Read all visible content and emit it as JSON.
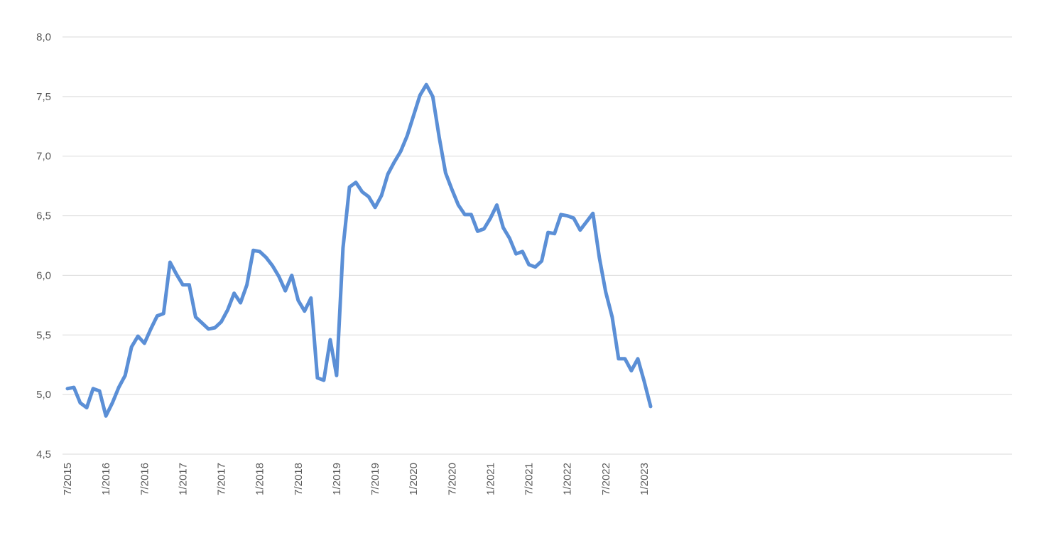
{
  "chart_data": {
    "type": "line",
    "title": "",
    "xlabel": "",
    "ylabel": "",
    "ylim": [
      4.5,
      8.0
    ],
    "grid": true,
    "yticks": [
      "4,5",
      "5,0",
      "5,5",
      "6,0",
      "6,5",
      "7,0",
      "7,5",
      "8,0"
    ],
    "xticks": [
      "7/2015",
      "1/2016",
      "7/2016",
      "1/2017",
      "7/2017",
      "1/2018",
      "7/2018",
      "1/2019",
      "7/2019",
      "1/2020",
      "7/2020",
      "1/2021",
      "7/2021",
      "1/2022",
      "7/2022",
      "1/2023"
    ],
    "series_color": "#5b8fd6",
    "x": [
      "7/2015",
      "8/2015",
      "9/2015",
      "10/2015",
      "11/2015",
      "12/2015",
      "1/2016",
      "2/2016",
      "3/2016",
      "4/2016",
      "5/2016",
      "6/2016",
      "7/2016",
      "8/2016",
      "9/2016",
      "10/2016",
      "11/2016",
      "12/2016",
      "1/2017",
      "2/2017",
      "3/2017",
      "4/2017",
      "5/2017",
      "6/2017",
      "7/2017",
      "8/2017",
      "9/2017",
      "10/2017",
      "11/2017",
      "12/2017",
      "1/2018",
      "2/2018",
      "3/2018",
      "4/2018",
      "5/2018",
      "6/2018",
      "7/2018",
      "8/2018",
      "9/2018",
      "10/2018",
      "11/2018",
      "12/2018",
      "1/2019",
      "2/2019",
      "3/2019",
      "4/2019",
      "5/2019",
      "6/2019",
      "7/2019",
      "8/2019",
      "9/2019",
      "10/2019",
      "11/2019",
      "12/2019",
      "1/2020",
      "2/2020",
      "3/2020",
      "4/2020",
      "5/2020",
      "6/2020",
      "7/2020",
      "8/2020",
      "9/2020",
      "10/2020",
      "11/2020",
      "12/2020",
      "1/2021",
      "2/2021",
      "3/2021",
      "4/2021",
      "5/2021",
      "6/2021",
      "7/2021",
      "8/2021",
      "9/2021",
      "10/2021",
      "11/2021",
      "12/2021",
      "1/2022",
      "2/2022",
      "3/2022",
      "4/2022",
      "5/2022",
      "6/2022",
      "7/2022",
      "8/2022",
      "9/2022",
      "10/2022",
      "11/2022",
      "12/2022",
      "1/2023",
      "2/2023"
    ],
    "series": [
      {
        "values": [
          5.05,
          5.06,
          4.93,
          4.89,
          5.05,
          5.03,
          4.82,
          4.93,
          5.06,
          5.16,
          5.4,
          5.49,
          5.43,
          5.55,
          5.66,
          5.68,
          6.11,
          6.01,
          5.92,
          5.92,
          5.65,
          5.6,
          5.55,
          5.56,
          5.61,
          5.71,
          5.85,
          5.77,
          5.92,
          6.21,
          6.2,
          6.15,
          6.08,
          5.99,
          5.87,
          6.0,
          5.79,
          5.7,
          5.81,
          5.14,
          5.12,
          5.46,
          5.16,
          6.23,
          6.74,
          6.78,
          6.7,
          6.66,
          6.57,
          6.67,
          6.85,
          6.95,
          7.04,
          7.17,
          7.34,
          7.51,
          7.6,
          7.5,
          7.16,
          6.86,
          6.72,
          6.59,
          6.51,
          6.51,
          6.37,
          6.39,
          6.48,
          6.59,
          6.4,
          6.31,
          6.18,
          6.2,
          6.09,
          6.07,
          6.12,
          6.36,
          6.35,
          6.51,
          6.5,
          6.48,
          6.38,
          6.45,
          6.52,
          6.15,
          5.86,
          5.65,
          5.3,
          5.3,
          5.2,
          5.3,
          5.11,
          4.9
        ]
      }
    ]
  }
}
